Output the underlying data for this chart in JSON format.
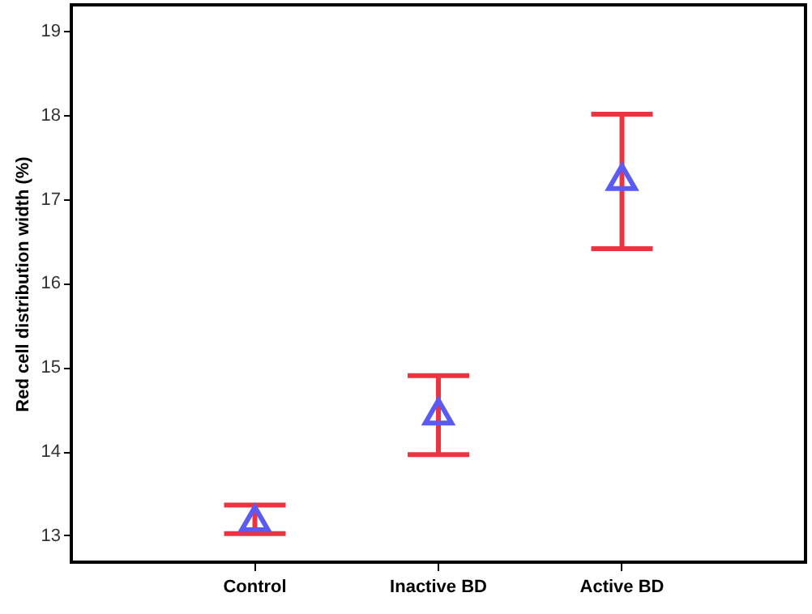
{
  "chart_data": {
    "type": "scatter",
    "ylabel": "Red cell distribution width (%)",
    "categories": [
      "Control",
      "Inactive BD",
      "Active BD"
    ],
    "series": [
      {
        "color": "#5a5af5",
        "values": [
          13.2,
          14.47,
          17.26
        ],
        "errors": [
          [
            13.02,
            13.36
          ],
          [
            13.96,
            14.9
          ],
          [
            16.41,
            18.01
          ]
        ]
      }
    ],
    "ylim": [
      12.68,
      19.31
    ],
    "yticks": [
      13,
      14,
      15,
      16,
      17,
      18,
      19
    ],
    "grid": false,
    "marker": "triangle"
  }
}
